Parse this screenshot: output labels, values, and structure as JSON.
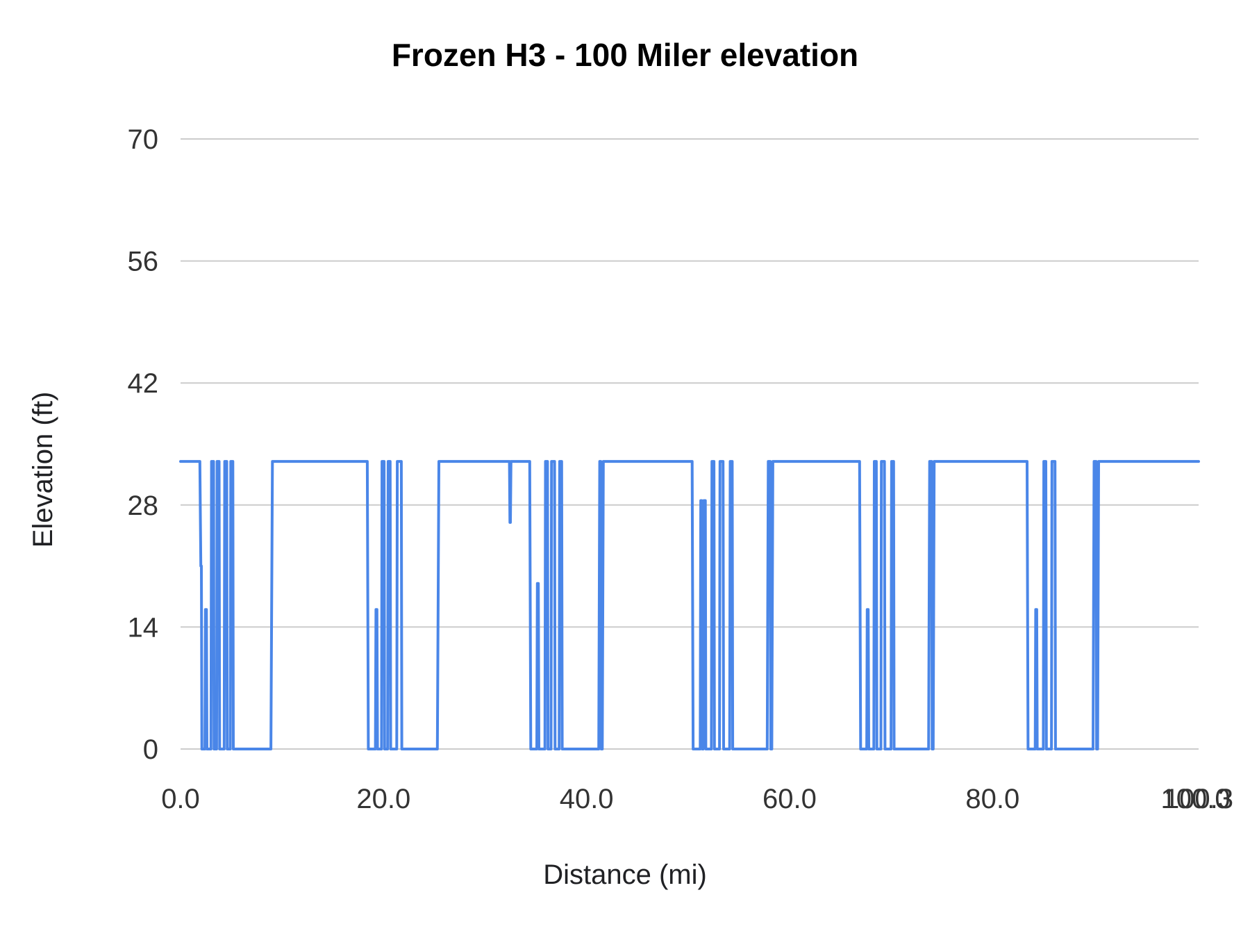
{
  "chart": {
    "background_color": "#ffffff",
    "line_color": "#4a86e8",
    "grid_color": "#cccccc",
    "title_color": "#000000",
    "tick_color": "#333333"
  },
  "chart_data": {
    "type": "line",
    "title": "Frozen H3 - 100 Miler elevation",
    "xlabel": "Distance (mi)",
    "ylabel": "Elevation (ft)",
    "xlim": [
      0,
      100.3
    ],
    "ylim": [
      0,
      70
    ],
    "y_ticks": [
      0,
      14,
      28,
      42,
      56,
      70
    ],
    "y_tick_labels": [
      "0",
      "14",
      "28",
      "42",
      "56",
      "70"
    ],
    "x_ticks": [
      0,
      20,
      40,
      60,
      80,
      100
    ],
    "x_tick_labels": [
      "0.0",
      "20.0",
      "40.0",
      "60.0",
      "80.0",
      "100.0"
    ],
    "x_end_label": "100.3",
    "grid": true,
    "legend_position": "none",
    "series": [
      {
        "name": "Elevation",
        "color": "#4a86e8",
        "points": [
          [
            0,
            33
          ],
          [
            1.9,
            33
          ],
          [
            2.0,
            21
          ],
          [
            2.05,
            21
          ],
          [
            2.1,
            0
          ],
          [
            2.4,
            0
          ],
          [
            2.45,
            16
          ],
          [
            2.55,
            16
          ],
          [
            2.6,
            0
          ],
          [
            3.0,
            0
          ],
          [
            3.05,
            33
          ],
          [
            3.25,
            33
          ],
          [
            3.3,
            0
          ],
          [
            3.55,
            0
          ],
          [
            3.6,
            33
          ],
          [
            3.8,
            33
          ],
          [
            3.85,
            0
          ],
          [
            4.3,
            0
          ],
          [
            4.35,
            33
          ],
          [
            4.55,
            33
          ],
          [
            4.6,
            0
          ],
          [
            4.9,
            0
          ],
          [
            4.95,
            33
          ],
          [
            5.15,
            33
          ],
          [
            5.2,
            0
          ],
          [
            8.9,
            0
          ],
          [
            9.05,
            33
          ],
          [
            18.4,
            33
          ],
          [
            18.5,
            0
          ],
          [
            19.2,
            0
          ],
          [
            19.25,
            16
          ],
          [
            19.35,
            16
          ],
          [
            19.4,
            0
          ],
          [
            19.8,
            0
          ],
          [
            19.85,
            33
          ],
          [
            20.05,
            33
          ],
          [
            20.1,
            0
          ],
          [
            20.4,
            0
          ],
          [
            20.45,
            33
          ],
          [
            20.65,
            33
          ],
          [
            20.7,
            0
          ],
          [
            21.3,
            0
          ],
          [
            21.35,
            33
          ],
          [
            21.75,
            33
          ],
          [
            21.8,
            0
          ],
          [
            25.3,
            0
          ],
          [
            25.45,
            33
          ],
          [
            32.4,
            33
          ],
          [
            32.45,
            26
          ],
          [
            32.5,
            26
          ],
          [
            32.55,
            33
          ],
          [
            34.4,
            33
          ],
          [
            34.5,
            0
          ],
          [
            35.1,
            0
          ],
          [
            35.15,
            19
          ],
          [
            35.25,
            19
          ],
          [
            35.3,
            0
          ],
          [
            35.9,
            0
          ],
          [
            35.95,
            33
          ],
          [
            36.15,
            33
          ],
          [
            36.2,
            0
          ],
          [
            36.5,
            0
          ],
          [
            36.55,
            33
          ],
          [
            36.85,
            33
          ],
          [
            36.9,
            0
          ],
          [
            37.3,
            0
          ],
          [
            37.35,
            33
          ],
          [
            37.55,
            33
          ],
          [
            37.6,
            0
          ],
          [
            41.2,
            0
          ],
          [
            41.3,
            33
          ],
          [
            41.4,
            33
          ],
          [
            41.45,
            0
          ],
          [
            41.55,
            0
          ],
          [
            41.65,
            33
          ],
          [
            50.4,
            33
          ],
          [
            50.5,
            0
          ],
          [
            51.2,
            0
          ],
          [
            51.25,
            28.5
          ],
          [
            51.35,
            28.5
          ],
          [
            51.4,
            0
          ],
          [
            51.5,
            0
          ],
          [
            51.55,
            28.5
          ],
          [
            51.7,
            28.5
          ],
          [
            51.75,
            0
          ],
          [
            52.3,
            0
          ],
          [
            52.35,
            33
          ],
          [
            52.55,
            33
          ],
          [
            52.6,
            0
          ],
          [
            53.1,
            0
          ],
          [
            53.15,
            33
          ],
          [
            53.45,
            33
          ],
          [
            53.5,
            0
          ],
          [
            54.1,
            0
          ],
          [
            54.15,
            33
          ],
          [
            54.35,
            33
          ],
          [
            54.4,
            0
          ],
          [
            57.8,
            0
          ],
          [
            57.9,
            33
          ],
          [
            58.1,
            33
          ],
          [
            58.15,
            0
          ],
          [
            58.25,
            0
          ],
          [
            58.35,
            33
          ],
          [
            66.9,
            33
          ],
          [
            67.0,
            0
          ],
          [
            67.6,
            0
          ],
          [
            67.65,
            16
          ],
          [
            67.75,
            16
          ],
          [
            67.8,
            0
          ],
          [
            68.3,
            0
          ],
          [
            68.35,
            33
          ],
          [
            68.55,
            33
          ],
          [
            68.6,
            0
          ],
          [
            69.0,
            0
          ],
          [
            69.05,
            33
          ],
          [
            69.35,
            33
          ],
          [
            69.4,
            0
          ],
          [
            70.0,
            0
          ],
          [
            70.05,
            33
          ],
          [
            70.25,
            33
          ],
          [
            70.3,
            0
          ],
          [
            73.7,
            0
          ],
          [
            73.8,
            33
          ],
          [
            74.0,
            33
          ],
          [
            74.05,
            0
          ],
          [
            74.15,
            0
          ],
          [
            74.25,
            33
          ],
          [
            83.4,
            33
          ],
          [
            83.5,
            0
          ],
          [
            84.2,
            0
          ],
          [
            84.25,
            16
          ],
          [
            84.35,
            16
          ],
          [
            84.4,
            0
          ],
          [
            85.0,
            0
          ],
          [
            85.05,
            33
          ],
          [
            85.25,
            33
          ],
          [
            85.3,
            0
          ],
          [
            85.8,
            0
          ],
          [
            85.85,
            33
          ],
          [
            86.15,
            33
          ],
          [
            86.2,
            0
          ],
          [
            89.9,
            0
          ],
          [
            90.0,
            33
          ],
          [
            90.2,
            33
          ],
          [
            90.25,
            0
          ],
          [
            90.35,
            0
          ],
          [
            90.45,
            33
          ],
          [
            100.3,
            33
          ]
        ]
      }
    ]
  }
}
